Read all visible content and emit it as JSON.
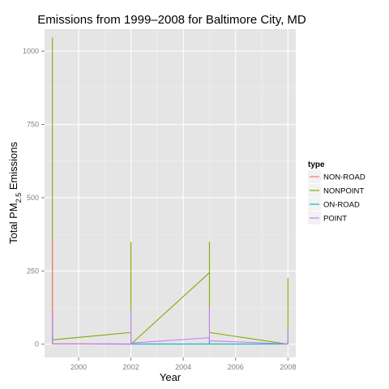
{
  "chart_data": {
    "type": "line",
    "title": "Emissions from 1999–2008 for Baltimore City, MD",
    "xlabel": "Year",
    "ylabel": {
      "prefix": "Total PM",
      "subscript": "2.5",
      "suffix": " Emissions"
    },
    "xlim": [
      1998.7,
      2008.3
    ],
    "ylim": [
      -45,
      1075
    ],
    "x_ticks": [
      2000,
      2002,
      2004,
      2006,
      2008
    ],
    "y_ticks": [
      0,
      250,
      500,
      750,
      1000
    ],
    "grid": true,
    "legend_title": "type",
    "legend_position": "right",
    "series": [
      {
        "name": "NONPOINT",
        "color": "#7CAE00",
        "points": [
          [
            1999,
            0
          ],
          [
            1999,
            1045
          ],
          [
            1999,
            15
          ],
          [
            2002,
            40
          ],
          [
            2002,
            348
          ],
          [
            2002,
            0
          ],
          [
            2005,
            244
          ],
          [
            2005,
            348
          ],
          [
            2005,
            40
          ],
          [
            2008,
            0
          ],
          [
            2008,
            225
          ],
          [
            2008,
            5
          ]
        ]
      },
      {
        "name": "NON-ROAD",
        "color": "#F8766D",
        "points": [
          [
            1999,
            0
          ],
          [
            1999,
            350
          ],
          [
            1999,
            2
          ],
          [
            2002,
            1
          ],
          [
            2002,
            35
          ],
          [
            2002,
            1
          ],
          [
            2005,
            1
          ],
          [
            2005,
            30
          ],
          [
            2005,
            1
          ],
          [
            2008,
            1
          ],
          [
            2008,
            30
          ],
          [
            2008,
            1
          ]
        ]
      },
      {
        "name": "ON-ROAD",
        "color": "#00BFC4",
        "points": [
          [
            1999,
            0
          ],
          [
            1999,
            40
          ],
          [
            1999,
            1
          ],
          [
            2002,
            0.5
          ],
          [
            2002,
            20
          ],
          [
            2002,
            0.5
          ],
          [
            2005,
            0.5
          ],
          [
            2005,
            20
          ],
          [
            2005,
            0.5
          ],
          [
            2008,
            0.5
          ],
          [
            2008,
            15
          ],
          [
            2008,
            0.5
          ]
        ]
      },
      {
        "name": "POINT",
        "color": "#C77CFF",
        "points": [
          [
            1999,
            0
          ],
          [
            1999,
            100
          ],
          [
            1999,
            1
          ],
          [
            2002,
            0
          ],
          [
            2002,
            115
          ],
          [
            2002,
            4
          ],
          [
            2005,
            22
          ],
          [
            2005,
            125
          ],
          [
            2005,
            12
          ],
          [
            2008,
            1
          ],
          [
            2008,
            50
          ],
          [
            2008,
            1
          ]
        ]
      }
    ],
    "legend_order": [
      "NON-ROAD",
      "NONPOINT",
      "ON-ROAD",
      "POINT"
    ]
  }
}
